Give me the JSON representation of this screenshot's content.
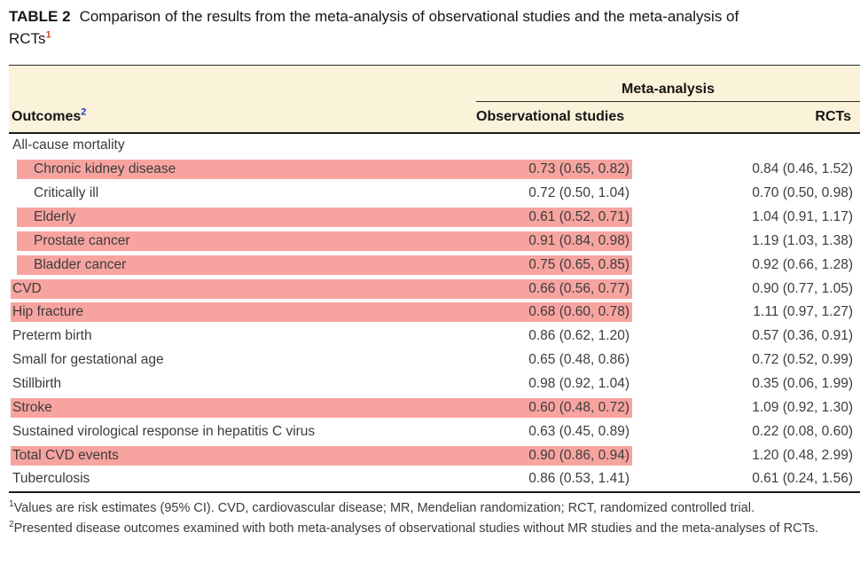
{
  "title": {
    "label": "TABLE 2",
    "text": "Comparison of the results from the meta-analysis of observational studies and the meta-analysis of RCTs",
    "footnote_ref": "1"
  },
  "table": {
    "group_header": "Meta-analysis",
    "columns": {
      "outcomes_label": "Outcomes",
      "outcomes_footnote_ref": "2",
      "observational": "Observational studies",
      "rcts": "RCTs"
    },
    "rows": [
      {
        "outcome": "All-cause mortality",
        "indent": false,
        "highlight": false,
        "observational": "",
        "rcts": ""
      },
      {
        "outcome": "Chronic kidney disease",
        "indent": true,
        "highlight": true,
        "observational": "0.73 (0.65, 0.82)",
        "rcts": "0.84 (0.46, 1.52)"
      },
      {
        "outcome": "Critically ill",
        "indent": true,
        "highlight": false,
        "observational": "0.72 (0.50, 1.04)",
        "rcts": "0.70 (0.50, 0.98)"
      },
      {
        "outcome": "Elderly",
        "indent": true,
        "highlight": true,
        "observational": "0.61 (0.52, 0.71)",
        "rcts": "1.04 (0.91, 1.17)"
      },
      {
        "outcome": "Prostate cancer",
        "indent": true,
        "highlight": true,
        "observational": "0.91 (0.84, 0.98)",
        "rcts": "1.19 (1.03, 1.38)"
      },
      {
        "outcome": "Bladder cancer",
        "indent": true,
        "highlight": true,
        "observational": "0.75 (0.65, 0.85)",
        "rcts": "0.92 (0.66, 1.28)"
      },
      {
        "outcome": "CVD",
        "indent": false,
        "highlight": true,
        "observational": "0.66 (0.56, 0.77)",
        "rcts": "0.90 (0.77, 1.05)"
      },
      {
        "outcome": "Hip fracture",
        "indent": false,
        "highlight": true,
        "observational": "0.68 (0.60, 0.78)",
        "rcts": "1.11 (0.97, 1.27)"
      },
      {
        "outcome": "Preterm birth",
        "indent": false,
        "highlight": false,
        "observational": "0.86 (0.62, 1.20)",
        "rcts": "0.57 (0.36, 0.91)"
      },
      {
        "outcome": "Small for gestational age",
        "indent": false,
        "highlight": false,
        "observational": "0.65 (0.48, 0.86)",
        "rcts": "0.72 (0.52, 0.99)"
      },
      {
        "outcome": "Stillbirth",
        "indent": false,
        "highlight": false,
        "observational": "0.98 (0.92, 1.04)",
        "rcts": "0.35 (0.06, 1.99)"
      },
      {
        "outcome": "Stroke",
        "indent": false,
        "highlight": true,
        "observational": "0.60 (0.48, 0.72)",
        "rcts": "1.09 (0.92, 1.30)"
      },
      {
        "outcome": "Sustained virological response in hepatitis C virus",
        "indent": false,
        "highlight": false,
        "observational": "0.63 (0.45, 0.89)",
        "rcts": "0.22 (0.08, 0.60)"
      },
      {
        "outcome": "Total CVD events",
        "indent": false,
        "highlight": true,
        "observational": "0.90 (0.86, 0.94)",
        "rcts": "1.20 (0.48, 2.99)"
      },
      {
        "outcome": "Tuberculosis",
        "indent": false,
        "highlight": false,
        "observational": "0.86 (0.53, 1.41)",
        "rcts": "0.61 (0.24, 1.56)"
      }
    ]
  },
  "footnotes": [
    {
      "marker": "1",
      "text": "Values are risk estimates (95% CI). CVD, cardiovascular disease; MR, Mendelian randomization; RCT, randomized controlled trial."
    },
    {
      "marker": "2",
      "text": "Presented disease outcomes examined with both meta-analyses of observational studies without MR studies and the meta-analyses of RCTs."
    }
  ],
  "colors": {
    "highlight": "#f7a4a0",
    "header_bg": "#fbf3d9",
    "title_sup": "#cc4a21",
    "outcomes_sup": "#2233cc"
  }
}
